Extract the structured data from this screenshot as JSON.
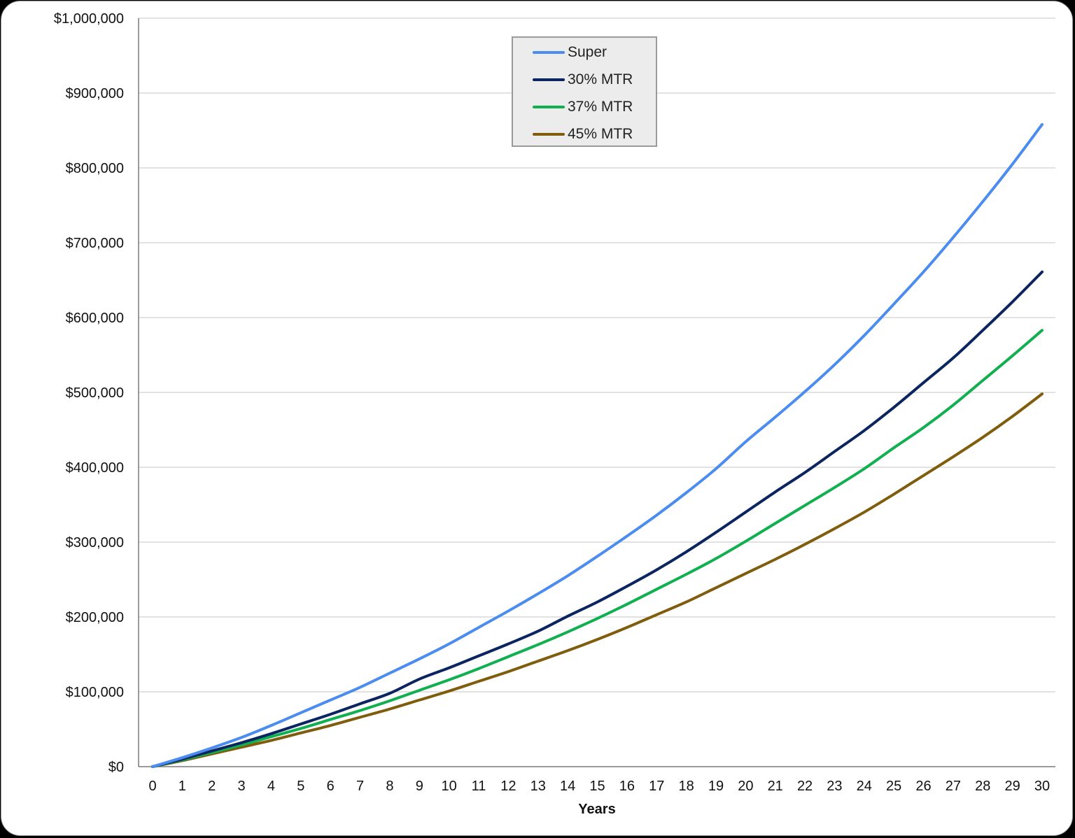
{
  "chart_data": {
    "type": "line",
    "title": "",
    "xlabel": "Years",
    "ylabel": "",
    "ylim": [
      0,
      1000000
    ],
    "xlim": [
      0,
      30
    ],
    "grid": true,
    "legend_position": "top-center (inside plot)",
    "y_tick_labels": [
      "$0",
      "$100,000",
      "$200,000",
      "$300,000",
      "$400,000",
      "$500,000",
      "$600,000",
      "$700,000",
      "$800,000",
      "$900,000",
      "$1,000,000"
    ],
    "y_tick_values": [
      0,
      100000,
      200000,
      300000,
      400000,
      500000,
      600000,
      700000,
      800000,
      900000,
      1000000
    ],
    "x": [
      0,
      1,
      2,
      3,
      4,
      5,
      6,
      7,
      8,
      9,
      10,
      11,
      12,
      13,
      14,
      15,
      16,
      17,
      18,
      19,
      20,
      21,
      22,
      23,
      24,
      25,
      26,
      27,
      28,
      29,
      30
    ],
    "series": [
      {
        "name": "Super",
        "color": "#4a8cf0",
        "values": [
          0,
          12000,
          25000,
          39000,
          55000,
          72000,
          89000,
          106000,
          125000,
          144000,
          164000,
          186000,
          208000,
          231000,
          255000,
          281000,
          308000,
          336000,
          366000,
          398000,
          434000,
          467000,
          501000,
          537000,
          576000,
          618000,
          661000,
          707000,
          755000,
          805000,
          858000
        ]
      },
      {
        "name": "30% MTR",
        "color": "#0b2560",
        "values": [
          0,
          10000,
          21000,
          32000,
          44000,
          57000,
          70000,
          84000,
          98000,
          117000,
          132000,
          148000,
          164000,
          181000,
          201000,
          220000,
          241000,
          263000,
          287000,
          313000,
          340000,
          367000,
          393000,
          421000,
          449000,
          480000,
          513000,
          546000,
          583000,
          621000,
          661000
        ]
      },
      {
        "name": "37% MTR",
        "color": "#10b050",
        "values": [
          0,
          9000,
          19000,
          29000,
          40000,
          51000,
          63000,
          75000,
          88000,
          102000,
          116000,
          131000,
          147000,
          163000,
          180000,
          198000,
          217000,
          237000,
          257000,
          278000,
          301000,
          325000,
          349000,
          373000,
          398000,
          426000,
          453000,
          483000,
          516000,
          549000,
          583000
        ]
      },
      {
        "name": "45% MTR",
        "color": "#7f5d0d",
        "values": [
          0,
          8000,
          17000,
          26000,
          35000,
          45000,
          55000,
          66000,
          77000,
          89000,
          101000,
          114000,
          127000,
          141000,
          155000,
          170000,
          186000,
          203000,
          220000,
          239000,
          258000,
          277000,
          297000,
          318000,
          340000,
          364000,
          389000,
          414000,
          440000,
          468000,
          498000
        ]
      }
    ]
  },
  "legend": {
    "items": [
      {
        "label": "Super",
        "color": "#4a8cf0"
      },
      {
        "label": "30% MTR",
        "color": "#0b2560"
      },
      {
        "label": "37% MTR",
        "color": "#10b050"
      },
      {
        "label": "45% MTR",
        "color": "#7f5d0d"
      }
    ]
  }
}
